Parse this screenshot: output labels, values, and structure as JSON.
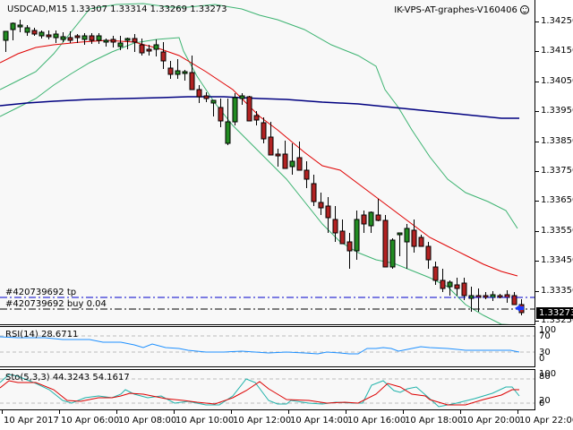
{
  "header": {
    "symbol": "USDCAD,M15",
    "ohlc": "1.33307 1.33314 1.33269 1.33273",
    "title_full": "USDCAD,M15  1.33307 1.33314 1.33269 1.33273",
    "watermark": "IK-VPS-AT-graphes-V160406",
    "watermark_icon": "smiley-icon"
  },
  "price_axis": {
    "ticks": [
      "1.34250",
      "1.34150",
      "1.34050",
      "1.33950",
      "1.33850",
      "1.33750",
      "1.33650",
      "1.33550",
      "1.33450",
      "1.33350",
      "1.33250"
    ],
    "current_price": "1.33273"
  },
  "orders": {
    "tp_label": "#420739692 tp",
    "buy_label": "#420739692 buy 0.04"
  },
  "rsi": {
    "label": "RSI(14) 28.6711",
    "levels": [
      "100",
      "70",
      "30",
      "0"
    ]
  },
  "stochastic": {
    "label": "Sto(5,3,3) 44.3243 54.1617",
    "levels": [
      "100",
      "80",
      "20",
      "0"
    ]
  },
  "time_axis": {
    "labels": [
      "10 Apr 2017",
      "10 Apr 06:00",
      "10 Apr 08:00",
      "10 Apr 10:00",
      "10 Apr 12:00",
      "10 Apr 14:00",
      "10 Apr 16:00",
      "10 Apr 18:00",
      "10 Apr 20:00",
      "10 Apr 22:00"
    ]
  },
  "colors": {
    "bull": "#228b22",
    "bear": "#b22222",
    "ma_red": "#e00000",
    "bollinger": "#3cb371",
    "ma_long": "#000080",
    "rsi_line": "#1e90ff",
    "sto_main": "#20b2aa",
    "sto_signal": "#dc0000",
    "tp_line": "#0000cd",
    "entry_line": "#000000"
  },
  "chart_data": {
    "type": "candlestick",
    "title": "USDCAD,M15",
    "xlabel": "",
    "ylabel": "Price",
    "ylim": [
      1.3322,
      1.3431
    ],
    "x": [
      "10 Apr 2017",
      "10 Apr 06:00",
      "10 Apr 08:00",
      "10 Apr 10:00",
      "10 Apr 12:00",
      "10 Apr 14:00",
      "10 Apr 16:00",
      "10 Apr 18:00",
      "10 Apr 20:00",
      "10 Apr 22:00"
    ],
    "last_ohlc": {
      "open": 1.33307,
      "high": 1.33314,
      "low": 1.33269,
      "close": 1.33273
    },
    "series": [
      {
        "name": "Price (approx. close per 2h)",
        "values": [
          1.3425,
          1.3421,
          1.3417,
          1.34,
          1.3382,
          1.336,
          1.3352,
          1.3338,
          1.3331,
          1.3327
        ]
      },
      {
        "name": "MA red",
        "values": [
          1.3408,
          1.3418,
          1.342,
          1.3412,
          1.3395,
          1.3378,
          1.3365,
          1.3354,
          1.3345,
          1.3339
        ]
      },
      {
        "name": "MA long (navy)",
        "values": [
          1.3398,
          1.34,
          1.34,
          1.34,
          1.3399,
          1.3398,
          1.3396,
          1.3395,
          1.3393,
          1.3392
        ]
      },
      {
        "name": "Bollinger upper",
        "values": [
          1.3415,
          1.3428,
          1.3427,
          1.3427,
          1.3425,
          1.3422,
          1.3393,
          1.3374,
          1.3363,
          1.3356
        ]
      },
      {
        "name": "Bollinger lower",
        "values": [
          1.3397,
          1.3403,
          1.3412,
          1.34,
          1.3378,
          1.3349,
          1.334,
          1.3334,
          1.3328,
          1.3324
        ]
      }
    ],
    "orders": [
      {
        "label": "#420739692 tp",
        "price": 1.3331
      },
      {
        "label": "#420739692 buy 0.04",
        "price": 1.3328
      }
    ],
    "indicators": [
      {
        "name": "RSI(14)",
        "value": 28.6711,
        "ylim": [
          0,
          100
        ],
        "levels": [
          30,
          70
        ]
      },
      {
        "name": "Sto(5,3,3)",
        "main": 44.3243,
        "signal": 54.1617,
        "ylim": [
          0,
          100
        ],
        "levels": [
          20,
          80
        ]
      }
    ]
  }
}
